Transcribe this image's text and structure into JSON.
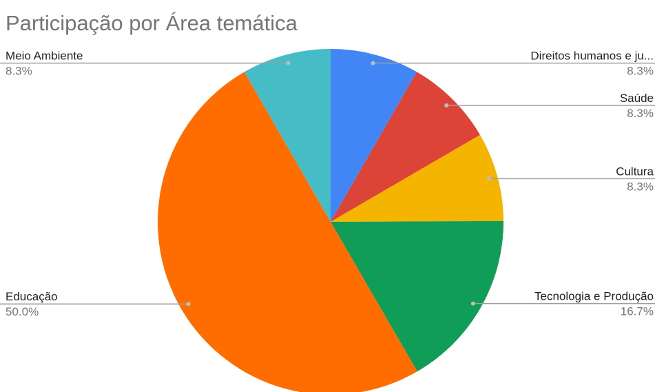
{
  "chart_data": {
    "type": "pie",
    "title": "Participação por Área temática",
    "categories": [
      "Direitos humanos e ju...",
      "Saúde",
      "Cultura",
      "Tecnologia e Produção",
      "Educação",
      "Meio Ambiente"
    ],
    "values": [
      8.3,
      8.3,
      8.3,
      16.7,
      50.0,
      8.3
    ],
    "value_labels": [
      "8.3%",
      "8.3%",
      "8.3%",
      "16.7%",
      "50.0%",
      "8.3%"
    ],
    "colors": [
      "#4285f4",
      "#db4437",
      "#f4b400",
      "#0f9d58",
      "#ff6d01",
      "#46bdc6"
    ]
  }
}
